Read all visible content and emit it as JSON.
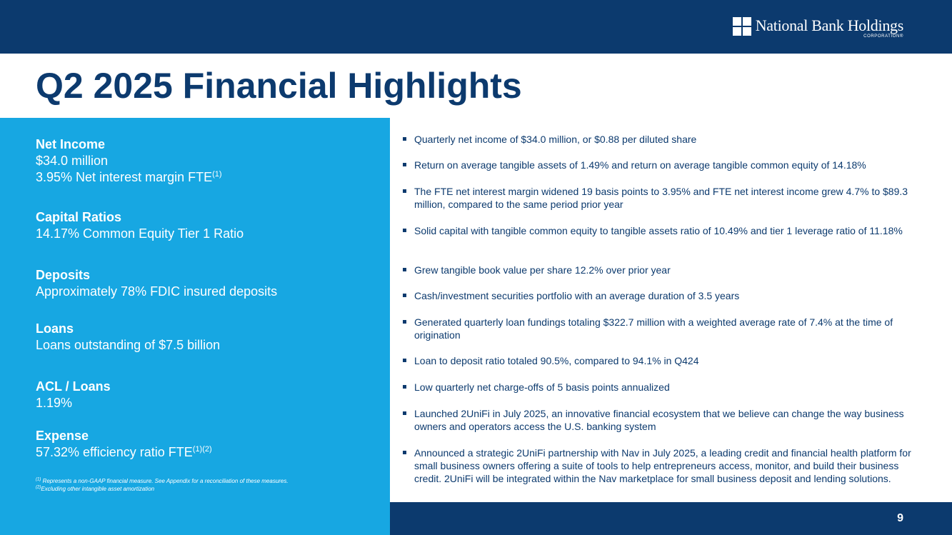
{
  "header": {
    "logo_name": "National Bank Holdings",
    "logo_sub": "CORPORATION®"
  },
  "title": "Q2 2025 Financial Highlights",
  "metrics": {
    "net_income": {
      "label": "Net Income",
      "line1": "$34.0 million",
      "line2": "3.95% Net interest margin FTE",
      "line2_sup": "(1)"
    },
    "capital": {
      "label": "Capital Ratios",
      "line1": "14.17% Common Equity Tier 1 Ratio"
    },
    "deposits": {
      "label": "Deposits",
      "line1": "Approximately 78% FDIC insured deposits"
    },
    "loans": {
      "label": "Loans",
      "line1": "Loans outstanding of $7.5 billion"
    },
    "acl": {
      "label": "ACL / Loans",
      "line1": "1.19%"
    },
    "expense": {
      "label": "Expense",
      "line1": "57.32% efficiency ratio FTE",
      "line1_sup": "(1)(2)"
    }
  },
  "footnotes": {
    "n1_mark": "(1)",
    "n1_text": " Represents a non-GAAP financial measure. See Appendix for a reconciliation of these measures.",
    "n2_mark": "(2)",
    "n2_text": "Excluding other intangible asset amortization"
  },
  "bullets": [
    "Quarterly net income of $34.0 million, or $0.88 per diluted share",
    "Return on average tangible assets of 1.49% and return on average tangible common equity of 14.18%",
    "The FTE net interest margin widened 19 basis points to 3.95% and FTE net interest income grew 4.7% to $89.3 million, compared to the same period prior year",
    "Solid capital with tangible common equity to tangible assets ratio of 10.49% and tier 1 leverage ratio of 11.18%",
    "Grew tangible book value per share 12.2% over prior year",
    "Cash/investment securities portfolio with an average duration of 3.5 years",
    "Generated quarterly loan fundings totaling $322.7 million with a weighted average rate of 7.4% at the time of origination",
    "Loan to deposit ratio totaled 90.5%, compared to 94.1% in Q424",
    "Low quarterly net charge-offs of 5 basis points annualized",
    "Launched 2UniFi in July 2025, an innovative financial ecosystem that we believe can change the way business owners and operators access the U.S. banking system",
    "Announced a strategic 2UniFi partnership with Nav in July 2025, a leading credit and financial health platform for small business owners offering a suite of tools to help entrepreneurs access, monitor, and build their business credit. 2UniFi will be integrated within the Nav marketplace for small business deposit and lending solutions."
  ],
  "page_number": "9"
}
